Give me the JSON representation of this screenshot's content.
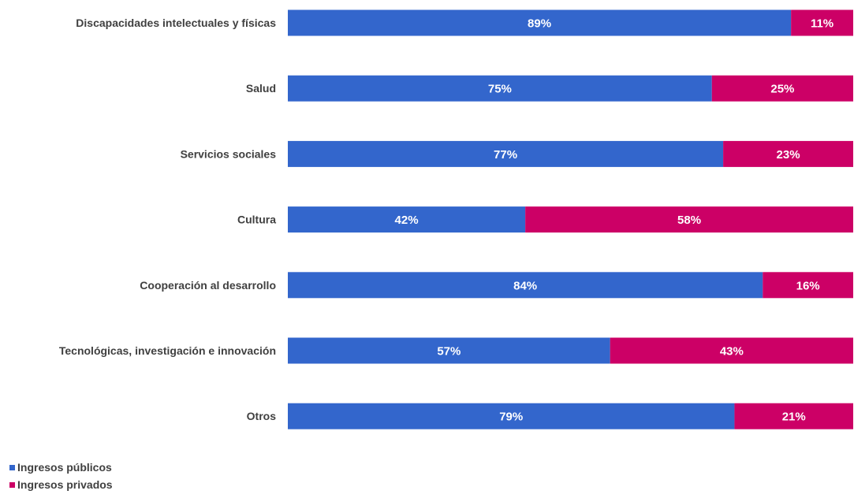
{
  "chart_data": {
    "type": "bar",
    "orientation": "horizontal",
    "stacked": true,
    "categories": [
      "Discapacidades intelectuales y físicas",
      "Salud",
      "Servicios sociales",
      "Cultura",
      "Cooperación al desarrollo",
      "Tecnológicas, investigación e innovación",
      "Otros"
    ],
    "series": [
      {
        "name": "Ingresos públicos",
        "color": "#3366cc",
        "values": [
          89,
          75,
          77,
          42,
          84,
          57,
          79
        ],
        "labels": [
          "89%",
          "75%",
          "77%",
          "42%",
          "84%",
          "57%",
          "79%"
        ]
      },
      {
        "name": "Ingresos privados",
        "color": "#cc0066",
        "values": [
          11,
          25,
          23,
          58,
          16,
          43,
          21
        ],
        "labels": [
          "11%",
          "25%",
          "23%",
          "58%",
          "16%",
          "43%",
          "21%"
        ]
      }
    ],
    "xlim": [
      0,
      100
    ],
    "title": "",
    "xlabel": "",
    "ylabel": "",
    "grid": false,
    "legend_position": "bottom-left"
  }
}
